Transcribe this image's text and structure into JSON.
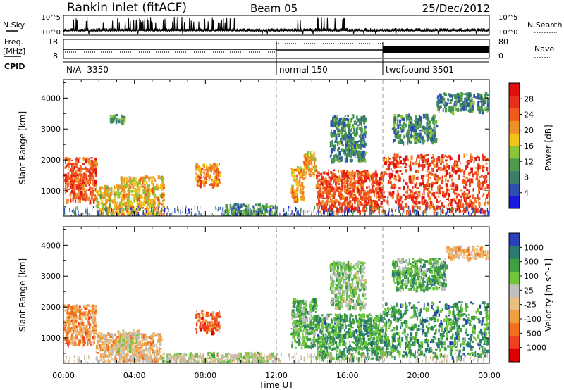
{
  "header": {
    "title": "Rankin Inlet (fitACF)",
    "beam": "Beam 05",
    "date": "25/Dec/2012"
  },
  "top_panels": {
    "nsky_label": "N.Sky",
    "nsky_tick_hi": "10^5",
    "nsky_tick_lo": "10^0",
    "nsearch_label": "N.Search",
    "nsearch_tick_hi": "10^5",
    "nsearch_tick_lo": "10^0",
    "freq_label_1": "Freq.",
    "freq_label_2": "[MHz]",
    "freq_tick_hi": "18",
    "freq_tick_lo": "8",
    "nave_label": "Nave",
    "nave_tick_hi": "80",
    "nave_tick_lo": "0",
    "cpid_label": "CPID",
    "cpid_segments": [
      {
        "label": "N/A -3350",
        "start_h": 0,
        "end_h": 12
      },
      {
        "label": "normal 150",
        "start_h": 12,
        "end_h": 18
      },
      {
        "label": "twofsound 3501",
        "start_h": 18,
        "end_h": 24
      }
    ]
  },
  "colors": {
    "power_scale": [
      "#1a1adc",
      "#2e4fb0",
      "#3a7f6a",
      "#4c9a4c",
      "#8bc43a",
      "#f0c418",
      "#f0902a",
      "#f05a1a",
      "#e8301a",
      "#e01010"
    ],
    "velocity_scale": [
      "#2b3fb8",
      "#2b7a70",
      "#3ea040",
      "#6ec83a",
      "#c0c0c0",
      "#e8c080",
      "#f0a040",
      "#f07020",
      "#f04020",
      "#e00000"
    ],
    "ground_scatter": "#c8b898",
    "grid_dash": "#999999"
  },
  "chart_data": [
    {
      "type": "heatmap",
      "title": "",
      "ylabel": "Slant Range [km]",
      "xlabel": "",
      "colorbar_label": "Power [dB]",
      "colorbar_ticks": [
        "4",
        "8",
        "12",
        "16",
        "20",
        "24",
        "28"
      ],
      "colorbar_range": [
        0,
        30
      ],
      "ylim": [
        180,
        4600
      ],
      "yticks": [
        1000,
        2000,
        3000,
        4000
      ],
      "xlim": [
        0,
        24
      ],
      "regions": [
        {
          "t0": 0.0,
          "t1": 1.8,
          "r0": 700,
          "r1": 2100,
          "level": 0.8
        },
        {
          "t0": 1.8,
          "t1": 3.2,
          "r0": 250,
          "r1": 1200,
          "level": 0.55
        },
        {
          "t0": 2.6,
          "t1": 3.4,
          "r0": 3200,
          "r1": 3500,
          "level": 0.3
        },
        {
          "t0": 3.2,
          "t1": 5.6,
          "r0": 250,
          "r1": 1500,
          "level": 0.6
        },
        {
          "t0": 7.4,
          "t1": 8.8,
          "r0": 1200,
          "r1": 1900,
          "level": 0.7
        },
        {
          "t0": 9.0,
          "t1": 12.0,
          "r0": 200,
          "r1": 600,
          "level": 0.3
        },
        {
          "t0": 12.8,
          "t1": 13.5,
          "r0": 700,
          "r1": 1800,
          "level": 0.65
        },
        {
          "t0": 13.5,
          "t1": 14.2,
          "r0": 1500,
          "r1": 2300,
          "level": 0.6
        },
        {
          "t0": 14.2,
          "t1": 18.0,
          "r0": 350,
          "r1": 1700,
          "level": 0.8
        },
        {
          "t0": 15.0,
          "t1": 17.0,
          "r0": 2000,
          "r1": 3500,
          "level": 0.25
        },
        {
          "t0": 18.0,
          "t1": 24.0,
          "r0": 350,
          "r1": 2200,
          "level": 0.85
        },
        {
          "t0": 18.5,
          "t1": 21.0,
          "r0": 2600,
          "r1": 3500,
          "level": 0.25
        },
        {
          "t0": 21.0,
          "t1": 24.0,
          "r0": 3600,
          "r1": 4200,
          "level": 0.25
        }
      ]
    },
    {
      "type": "heatmap",
      "title": "",
      "ylabel": "Slant Range [km]",
      "xlabel": "Time UT",
      "colorbar_label": "Velocity [m s^-1]",
      "colorbar_ticks": [
        "1000",
        "500",
        "100",
        "25",
        "-25",
        "-100",
        "-500",
        "-1000"
      ],
      "colorbar_range": [
        -1000,
        1000
      ],
      "ylim": [
        180,
        4600
      ],
      "yticks": [
        1000,
        2000,
        3000,
        4000
      ],
      "xlim": [
        0,
        24
      ],
      "xticks": [
        "00:00",
        "04:00",
        "08:00",
        "12:00",
        "16:00",
        "20:00",
        "00:00"
      ],
      "regions": [
        {
          "t0": 0.0,
          "t1": 1.8,
          "r0": 800,
          "r1": 2100,
          "level": 0.7
        },
        {
          "t0": 1.8,
          "t1": 5.5,
          "r0": 250,
          "r1": 1200,
          "level": 0.6
        },
        {
          "t0": 3.0,
          "t1": 4.2,
          "r0": 600,
          "r1": 1300,
          "level": 0.48
        },
        {
          "t0": 7.4,
          "t1": 8.8,
          "r0": 1200,
          "r1": 1900,
          "level": 0.78
        },
        {
          "t0": 5.5,
          "t1": 12.0,
          "r0": 200,
          "r1": 550,
          "level": 0.42
        },
        {
          "t0": 12.8,
          "t1": 14.2,
          "r0": 700,
          "r1": 2300,
          "level": 0.3
        },
        {
          "t0": 14.2,
          "t1": 18.0,
          "r0": 350,
          "r1": 1800,
          "level": 0.22
        },
        {
          "t0": 15.0,
          "t1": 17.0,
          "r0": 2000,
          "r1": 3500,
          "level": 0.35
        },
        {
          "t0": 18.0,
          "t1": 24.0,
          "r0": 400,
          "r1": 2200,
          "level": 0.2
        },
        {
          "t0": 18.5,
          "t1": 21.5,
          "r0": 2600,
          "r1": 3600,
          "level": 0.25
        },
        {
          "t0": 21.5,
          "t1": 24.0,
          "r0": 3600,
          "r1": 4000,
          "level": 0.6
        }
      ]
    }
  ]
}
